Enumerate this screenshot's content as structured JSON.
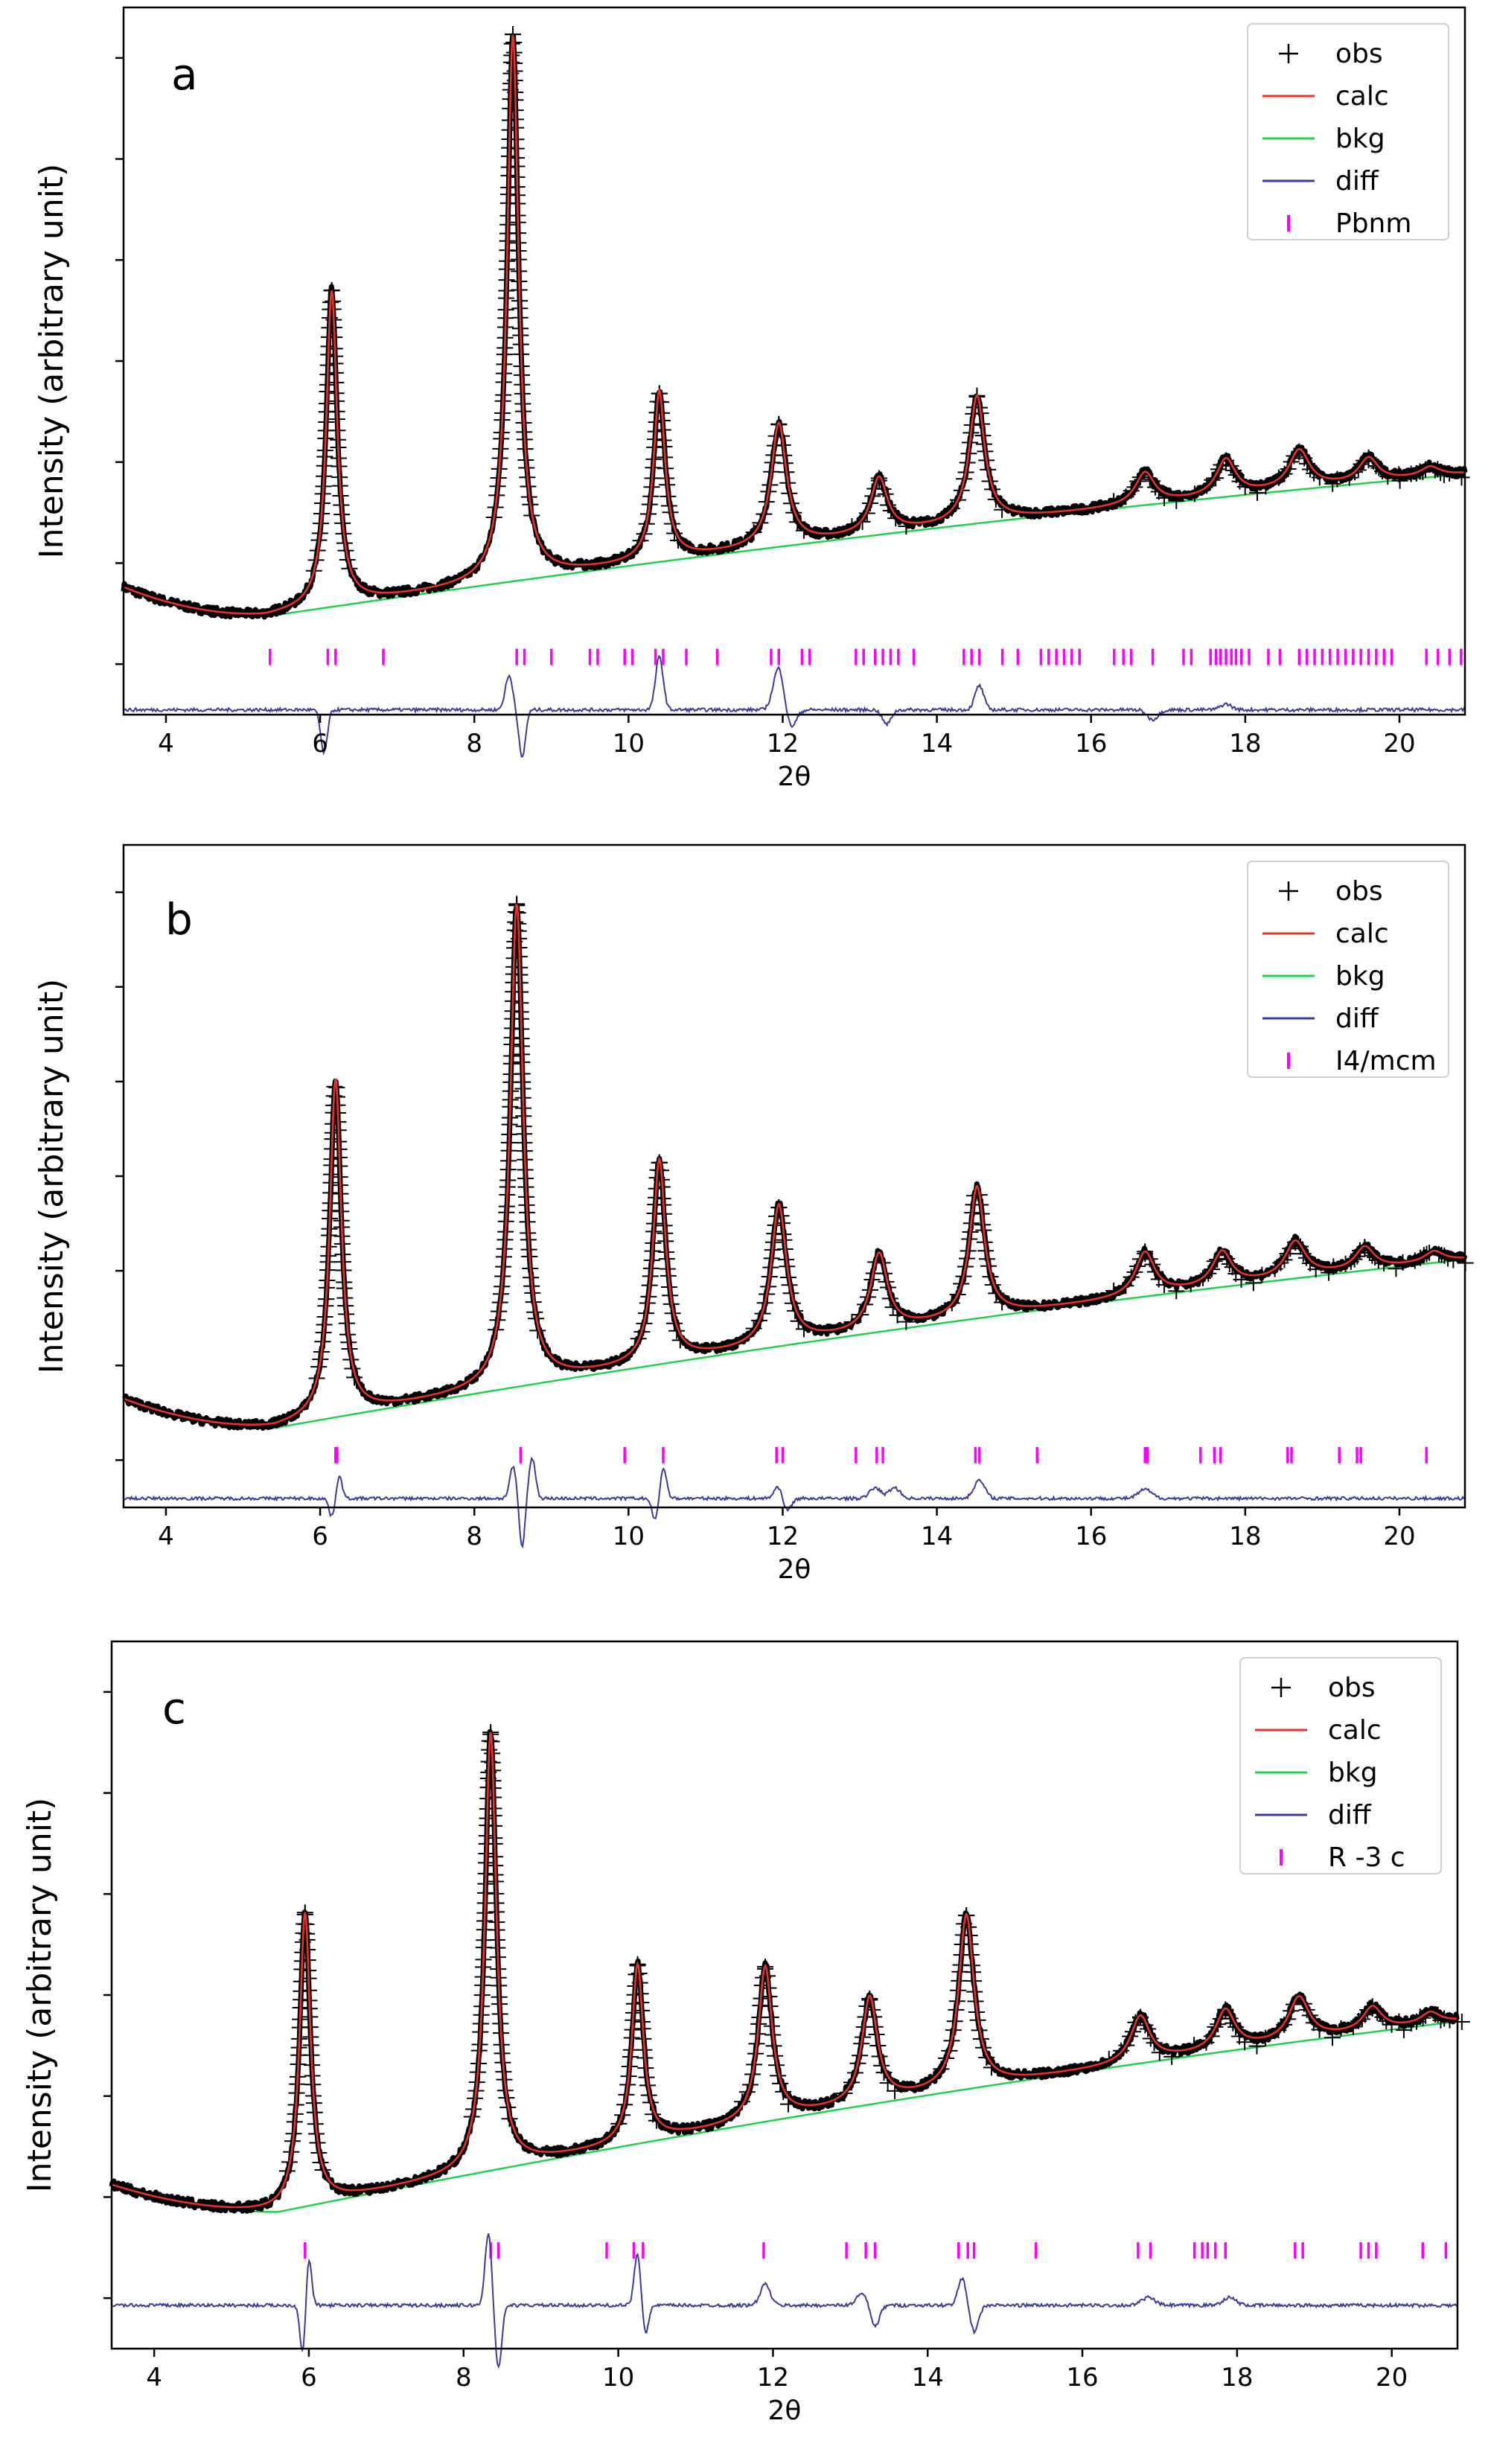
{
  "colors": {
    "obs": "#000000",
    "calc": "#e8312a",
    "bkg": "#22d14a",
    "diff": "#3b3b9a",
    "ticks": "#ff00ff",
    "calc_fill": "#f4a9a3"
  },
  "chart_data": [
    {
      "type": "line",
      "panel_label": "a",
      "xlabel": "2θ",
      "ylabel": "Intensity (arbitrary unit)",
      "xlim": [
        3.45,
        20.85
      ],
      "ylim": [
        -0.6,
        6.75
      ],
      "xticks": [
        4,
        6,
        8,
        10,
        12,
        14,
        16,
        18,
        20
      ],
      "legend": [
        {
          "key": "obs",
          "label": "obs",
          "marker": "plus"
        },
        {
          "key": "calc",
          "label": "calc",
          "marker": "line"
        },
        {
          "key": "bkg",
          "label": "bkg",
          "marker": "line"
        },
        {
          "key": "diff",
          "label": "diff",
          "marker": "line"
        },
        {
          "key": "ticks",
          "label": "Pbnm",
          "marker": "vbar"
        }
      ],
      "legend_position": "top-right",
      "background": {
        "start": 0.72,
        "min": 0.42,
        "min_at": 5.3,
        "end": 1.9
      },
      "peaks": [
        {
          "center": 6.15,
          "height": 3.28,
          "width": 0.085
        },
        {
          "center": 8.5,
          "height": 5.68,
          "width": 0.09
        },
        {
          "center": 10.4,
          "height": 1.76,
          "width": 0.09
        },
        {
          "center": 11.95,
          "height": 1.27,
          "width": 0.12
        },
        {
          "center": 13.25,
          "height": 0.58,
          "width": 0.13
        },
        {
          "center": 14.52,
          "height": 1.32,
          "width": 0.12
        },
        {
          "center": 16.7,
          "height": 0.33,
          "width": 0.15
        },
        {
          "center": 17.75,
          "height": 0.38,
          "width": 0.15
        },
        {
          "center": 18.7,
          "height": 0.4,
          "width": 0.16
        },
        {
          "center": 19.6,
          "height": 0.25,
          "width": 0.15
        },
        {
          "center": 20.4,
          "height": 0.1,
          "width": 0.15
        }
      ],
      "tick_row_y": 0.0,
      "reflections": [
        5.35,
        6.1,
        6.2,
        6.82,
        8.55,
        8.65,
        9.0,
        9.5,
        9.6,
        9.95,
        10.05,
        10.35,
        10.45,
        10.75,
        11.15,
        11.85,
        11.95,
        12.25,
        12.35,
        12.95,
        13.05,
        13.2,
        13.3,
        13.4,
        13.5,
        13.7,
        14.35,
        14.45,
        14.55,
        14.85,
        15.05,
        15.35,
        15.45,
        15.55,
        15.65,
        15.75,
        15.85,
        16.3,
        16.42,
        16.52,
        16.8,
        17.2,
        17.3,
        17.55,
        17.62,
        17.68,
        17.75,
        17.82,
        17.88,
        17.95,
        18.05,
        18.3,
        18.45,
        18.7,
        18.8,
        18.9,
        19.0,
        19.1,
        19.2,
        19.3,
        19.4,
        19.5,
        19.6,
        19.7,
        19.8,
        19.9,
        20.35,
        20.5,
        20.65,
        20.8
      ],
      "diff_offset": -0.55,
      "diff_events": [
        {
          "center": 6.05,
          "amp": -0.45,
          "width": 0.06
        },
        {
          "center": 8.45,
          "amp": 0.35,
          "width": 0.07
        },
        {
          "center": 8.62,
          "amp": -0.5,
          "width": 0.06
        },
        {
          "center": 10.4,
          "amp": 0.55,
          "width": 0.07
        },
        {
          "center": 11.95,
          "amp": 0.45,
          "width": 0.1
        },
        {
          "center": 12.1,
          "amp": -0.2,
          "width": 0.1
        },
        {
          "center": 13.35,
          "amp": -0.15,
          "width": 0.08
        },
        {
          "center": 14.55,
          "amp": 0.25,
          "width": 0.08
        },
        {
          "center": 16.8,
          "amp": -0.1,
          "width": 0.1
        },
        {
          "center": 17.75,
          "amp": 0.06,
          "width": 0.1
        }
      ]
    },
    {
      "type": "line",
      "panel_label": "b",
      "xlabel": "2θ",
      "ylabel": "Intensity (arbitrary unit)",
      "xlim": [
        3.45,
        20.85
      ],
      "ylim": [
        -0.6,
        6.75
      ],
      "xticks": [
        4,
        6,
        8,
        10,
        12,
        14,
        16,
        18,
        20
      ],
      "legend": [
        {
          "key": "obs",
          "label": "obs",
          "marker": "plus"
        },
        {
          "key": "calc",
          "label": "calc",
          "marker": "line"
        },
        {
          "key": "bkg",
          "label": "bkg",
          "marker": "line"
        },
        {
          "key": "diff",
          "label": "diff",
          "marker": "line"
        },
        {
          "key": "ticks",
          "label": "I4/mcm",
          "marker": "vbar"
        }
      ],
      "legend_position": "top-right",
      "background": {
        "start": 0.6,
        "min": 0.28,
        "min_at": 5.4,
        "end": 2.15
      },
      "peaks": [
        {
          "center": 6.2,
          "height": 3.75,
          "width": 0.09
        },
        {
          "center": 8.55,
          "height": 5.35,
          "width": 0.1
        },
        {
          "center": 10.4,
          "height": 2.25,
          "width": 0.1
        },
        {
          "center": 11.95,
          "height": 1.55,
          "width": 0.12
        },
        {
          "center": 13.25,
          "height": 0.85,
          "width": 0.13
        },
        {
          "center": 14.52,
          "height": 1.45,
          "width": 0.12
        },
        {
          "center": 16.7,
          "height": 0.48,
          "width": 0.15
        },
        {
          "center": 17.7,
          "height": 0.38,
          "width": 0.15
        },
        {
          "center": 18.65,
          "height": 0.4,
          "width": 0.16
        },
        {
          "center": 19.55,
          "height": 0.25,
          "width": 0.15
        },
        {
          "center": 20.45,
          "height": 0.12,
          "width": 0.15
        }
      ],
      "tick_row_y": -0.02,
      "reflections": [
        6.2,
        6.22,
        8.6,
        9.95,
        10.45,
        11.92,
        12.0,
        12.95,
        13.22,
        13.3,
        14.5,
        14.55,
        15.3,
        16.7,
        16.73,
        17.42,
        17.6,
        17.68,
        18.55,
        18.6,
        19.22,
        19.45,
        19.5,
        20.35
      ],
      "diff_offset": -0.5,
      "diff_events": [
        {
          "center": 6.15,
          "amp": -0.2,
          "width": 0.05
        },
        {
          "center": 6.25,
          "amp": 0.25,
          "width": 0.05
        },
        {
          "center": 8.5,
          "amp": 0.35,
          "width": 0.06
        },
        {
          "center": 8.62,
          "amp": -0.55,
          "width": 0.05
        },
        {
          "center": 8.75,
          "amp": 0.45,
          "width": 0.06
        },
        {
          "center": 10.35,
          "amp": -0.25,
          "width": 0.06
        },
        {
          "center": 10.45,
          "amp": 0.35,
          "width": 0.06
        },
        {
          "center": 11.95,
          "amp": 0.15,
          "width": 0.08
        },
        {
          "center": 12.05,
          "amp": -0.15,
          "width": 0.08
        },
        {
          "center": 13.2,
          "amp": 0.12,
          "width": 0.1
        },
        {
          "center": 13.45,
          "amp": 0.12,
          "width": 0.1
        },
        {
          "center": 14.55,
          "amp": 0.2,
          "width": 0.1
        },
        {
          "center": 16.7,
          "amp": 0.1,
          "width": 0.12
        }
      ]
    },
    {
      "type": "line",
      "panel_label": "c",
      "xlabel": "2θ",
      "ylabel": "Intensity (arbitrary unit)",
      "xlim": [
        3.45,
        20.85
      ],
      "ylim": [
        -0.6,
        6.75
      ],
      "xticks": [
        4,
        6,
        8,
        10,
        12,
        14,
        16,
        18,
        20
      ],
      "legend": [
        {
          "key": "obs",
          "label": "obs",
          "marker": "plus"
        },
        {
          "key": "calc",
          "label": "calc",
          "marker": "line"
        },
        {
          "key": "bkg",
          "label": "bkg",
          "marker": "line"
        },
        {
          "key": "diff",
          "label": "diff",
          "marker": "line"
        },
        {
          "key": "ticks",
          "label": "R -3 c",
          "marker": "vbar"
        }
      ],
      "legend_position": "top-right",
      "background": {
        "start": 1.1,
        "min": 0.82,
        "min_at": 5.6,
        "end": 2.8
      },
      "peaks": [
        {
          "center": 5.95,
          "height": 3.05,
          "width": 0.085
        },
        {
          "center": 8.35,
          "height": 4.55,
          "width": 0.09
        },
        {
          "center": 10.25,
          "height": 1.85,
          "width": 0.09
        },
        {
          "center": 11.9,
          "height": 1.6,
          "width": 0.11
        },
        {
          "center": 13.25,
          "height": 1.1,
          "width": 0.12
        },
        {
          "center": 14.5,
          "height": 1.8,
          "width": 0.12
        },
        {
          "center": 16.75,
          "height": 0.48,
          "width": 0.15
        },
        {
          "center": 17.85,
          "height": 0.42,
          "width": 0.15
        },
        {
          "center": 18.8,
          "height": 0.45,
          "width": 0.16
        },
        {
          "center": 19.75,
          "height": 0.25,
          "width": 0.15
        },
        {
          "center": 20.5,
          "height": 0.12,
          "width": 0.15
        }
      ],
      "tick_row_y": 0.42,
      "reflections": [
        5.95,
        8.35,
        8.45,
        9.85,
        10.2,
        10.32,
        11.88,
        12.95,
        13.2,
        13.32,
        14.4,
        14.52,
        14.6,
        15.4,
        16.72,
        16.88,
        17.45,
        17.55,
        17.62,
        17.72,
        17.85,
        18.75,
        18.85,
        19.6,
        19.7,
        19.8,
        20.4,
        20.7
      ],
      "diff_offset": -0.15,
      "diff_events": [
        {
          "center": 5.92,
          "amp": -0.5,
          "width": 0.05
        },
        {
          "center": 6.0,
          "amp": 0.5,
          "width": 0.05
        },
        {
          "center": 8.32,
          "amp": 0.75,
          "width": 0.06
        },
        {
          "center": 8.45,
          "amp": -0.65,
          "width": 0.06
        },
        {
          "center": 10.25,
          "amp": 0.55,
          "width": 0.06
        },
        {
          "center": 10.35,
          "amp": -0.3,
          "width": 0.06
        },
        {
          "center": 11.9,
          "amp": 0.22,
          "width": 0.09
        },
        {
          "center": 13.15,
          "amp": 0.12,
          "width": 0.1
        },
        {
          "center": 13.32,
          "amp": -0.22,
          "width": 0.08
        },
        {
          "center": 14.45,
          "amp": 0.28,
          "width": 0.08
        },
        {
          "center": 14.6,
          "amp": -0.28,
          "width": 0.08
        },
        {
          "center": 16.85,
          "amp": 0.08,
          "width": 0.12
        },
        {
          "center": 17.9,
          "amp": 0.08,
          "width": 0.12
        }
      ]
    }
  ]
}
